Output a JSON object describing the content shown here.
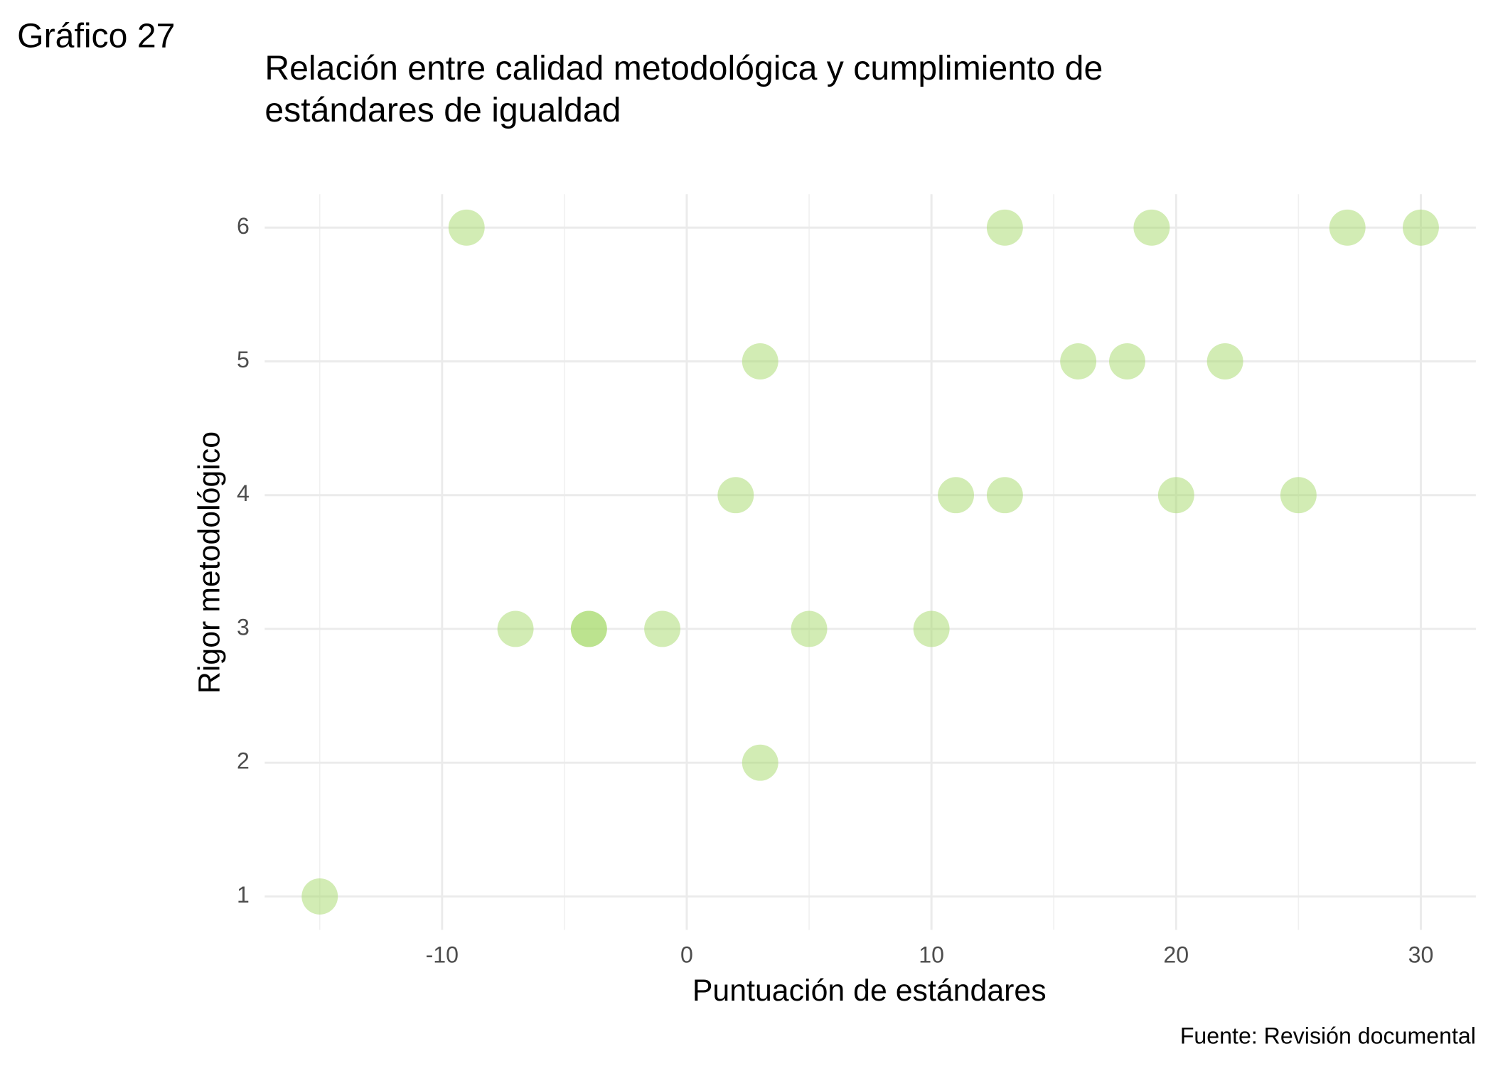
{
  "chart_data": {
    "type": "scatter",
    "figure_label": "Gráfico 27",
    "title": [
      "Relación entre calidad metodológica y cumplimiento de",
      "estándares de igualdad"
    ],
    "x_label": "Puntuación de estándares",
    "y_label": "Rigor metodológico",
    "caption": "Fuente: Revisión documental",
    "color": "#a6d96a",
    "grid": true,
    "xlim": [
      -17.25,
      32.25
    ],
    "xticks": [
      -10,
      0,
      10,
      20,
      30
    ],
    "x_minor_grid": [
      -15,
      -5,
      5,
      15,
      25
    ],
    "ylim": [
      0.75,
      6.25
    ],
    "yticks": [
      1,
      2,
      3,
      4,
      5,
      6
    ],
    "x": [
      -15,
      -9,
      13,
      19,
      27,
      30,
      3,
      16,
      18,
      22,
      2,
      11,
      13,
      20,
      25,
      -7,
      -4,
      -4,
      -1,
      5,
      10,
      3
    ],
    "values": [
      1,
      6,
      6,
      6,
      6,
      6,
      5,
      5,
      5,
      5,
      4,
      4,
      4,
      4,
      4,
      3,
      3,
      3,
      3,
      3,
      3,
      2
    ]
  }
}
